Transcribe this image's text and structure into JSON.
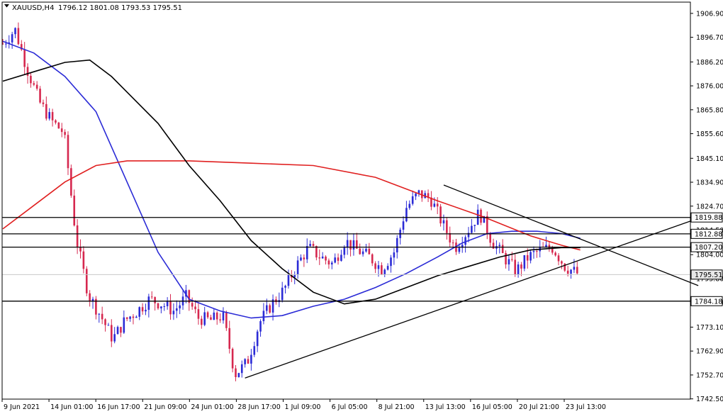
{
  "header": {
    "symbol": "XAUUSD,H4",
    "ohlc": "1796.12 1801.08 1793.53 1795.51"
  },
  "chart_data": {
    "type": "candlestick",
    "symbol": "XAUUSD",
    "timeframe": "H4",
    "ylim": [
      1742.4,
      1911.7
    ],
    "y_ticks": [
      "1906.90",
      "1896.70",
      "1886.20",
      "1876.00",
      "1865.80",
      "1855.60",
      "1845.10",
      "1834.90",
      "1824.70",
      "1814.50",
      "1804.00",
      "1793.80",
      "1783.60",
      "1773.10",
      "1762.90",
      "1752.70",
      "1742.50"
    ],
    "x_ticks": [
      "9 Jun 2021",
      "14 Jun 01:00",
      "16 Jun 17:00",
      "21 Jun 09:00",
      "24 Jun 01:00",
      "28 Jun 17:00",
      "1 Jul 09:00",
      "6 Jul 05:00",
      "8 Jul 21:00",
      "13 Jul 13:00",
      "16 Jul 05:00",
      "20 Jul 21:00",
      "23 Jul 13:00"
    ],
    "current_price": {
      "label": "1795.51",
      "value": 1795.51
    },
    "horizontal_levels": [
      {
        "label": "1819.88",
        "value": 1819.88
      },
      {
        "label": "1812.88",
        "value": 1812.88
      },
      {
        "label": "1807.20",
        "value": 1807.2
      },
      {
        "label": "1784.18",
        "value": 1784.18
      }
    ],
    "trendlines": [
      {
        "from": {
          "bar": 78,
          "price": 1751.4
        },
        "to": {
          "bar": 224,
          "price": 1819.5
        }
      },
      {
        "from": {
          "bar": 142,
          "price": 1833.7
        },
        "to": {
          "bar": 224,
          "price": 1790.8
        }
      }
    ],
    "key_prices": [
      1894,
      1900,
      1883,
      1869,
      1861,
      1856,
      1811,
      1787,
      1778,
      1768,
      1776,
      1780,
      1785,
      1783,
      1780,
      1786,
      1777,
      1776,
      1778,
      1753,
      1758,
      1775,
      1783,
      1789,
      1799,
      1807,
      1803,
      1800,
      1810,
      1806,
      1803,
      1798,
      1805,
      1824,
      1830,
      1828,
      1817,
      1807,
      1814,
      1822,
      1810,
      1803,
      1797,
      1803,
      1806,
      1807,
      1799,
      1796
    ],
    "moving_averages": [
      {
        "color": "#2b2bd6",
        "points": [
          [
            0,
            1895
          ],
          [
            10,
            1890
          ],
          [
            20,
            1880
          ],
          [
            30,
            1865
          ],
          [
            40,
            1835
          ],
          [
            50,
            1805
          ],
          [
            60,
            1785
          ],
          [
            70,
            1780
          ],
          [
            80,
            1777
          ],
          [
            90,
            1778
          ],
          [
            100,
            1782
          ],
          [
            110,
            1785
          ],
          [
            120,
            1790
          ],
          [
            130,
            1796
          ],
          [
            140,
            1803
          ],
          [
            148,
            1809
          ],
          [
            156,
            1813
          ],
          [
            164,
            1814
          ],
          [
            172,
            1814
          ],
          [
            180,
            1813
          ],
          [
            186,
            1811
          ]
        ]
      },
      {
        "color": "#e02020",
        "points": [
          [
            0,
            1815
          ],
          [
            10,
            1825
          ],
          [
            20,
            1835
          ],
          [
            30,
            1842
          ],
          [
            40,
            1844
          ],
          [
            60,
            1844
          ],
          [
            80,
            1843
          ],
          [
            100,
            1842
          ],
          [
            120,
            1837
          ],
          [
            140,
            1827
          ],
          [
            155,
            1820
          ],
          [
            170,
            1812
          ],
          [
            180,
            1808
          ],
          [
            186,
            1806
          ]
        ]
      },
      {
        "color": "#000000",
        "points": [
          [
            0,
            1878
          ],
          [
            10,
            1882
          ],
          [
            20,
            1886
          ],
          [
            28,
            1887
          ],
          [
            35,
            1880
          ],
          [
            50,
            1860
          ],
          [
            60,
            1842
          ],
          [
            70,
            1827
          ],
          [
            80,
            1810
          ],
          [
            90,
            1798
          ],
          [
            100,
            1788
          ],
          [
            110,
            1783
          ],
          [
            120,
            1785
          ],
          [
            130,
            1790
          ],
          [
            140,
            1795
          ],
          [
            150,
            1799
          ],
          [
            160,
            1803
          ],
          [
            170,
            1806
          ],
          [
            180,
            1807
          ],
          [
            186,
            1807
          ]
        ]
      }
    ],
    "grid": false,
    "colors": {
      "bull": "#2b2bd6",
      "bear": "#d6284f",
      "ma_blue": "#2b2bd6",
      "ma_red": "#e02020",
      "ma_black": "#000000",
      "trendline": "#000000",
      "level": "#000000"
    }
  }
}
